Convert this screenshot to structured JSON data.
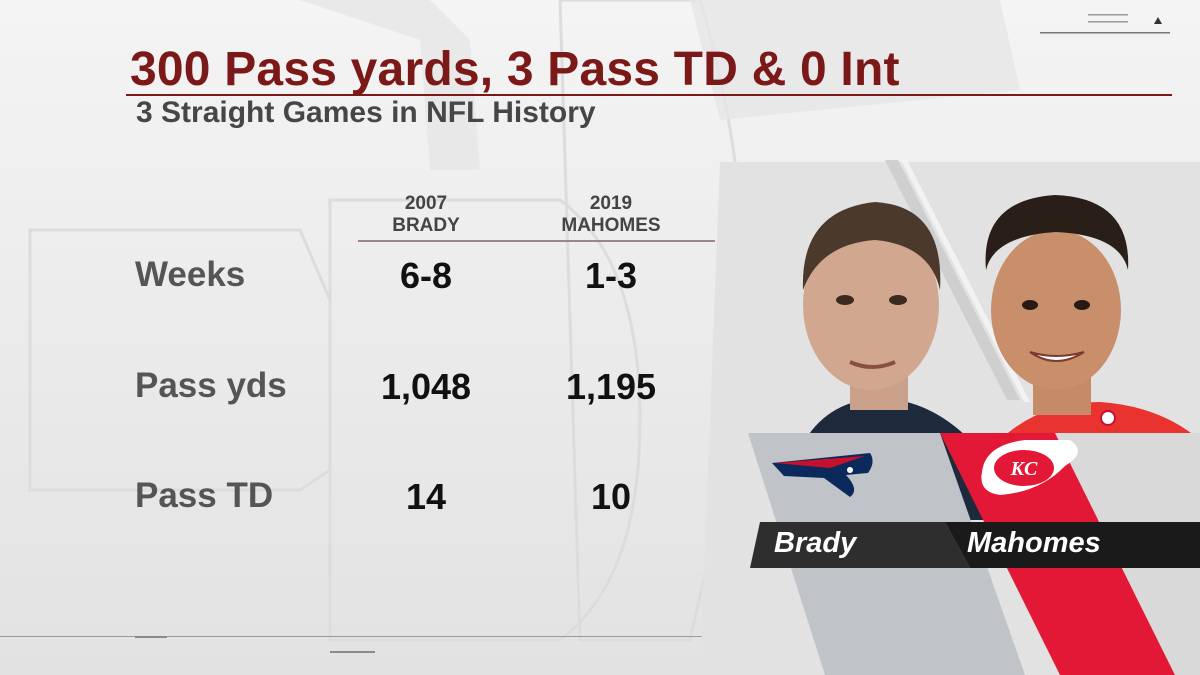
{
  "title": "300 Pass yards, 3 Pass TD & 0 Int",
  "subtitle": "3 Straight Games in NFL History",
  "columns": [
    {
      "year": "2007",
      "name": "BRADY"
    },
    {
      "year": "2019",
      "name": "MAHOMES"
    }
  ],
  "rows": [
    {
      "label": "Weeks",
      "values": [
        "6-8",
        "1-3"
      ]
    },
    {
      "label": "Pass yds",
      "values": [
        "1,048",
        "1,195"
      ]
    },
    {
      "label": "Pass TD",
      "values": [
        "14",
        "10"
      ]
    }
  ],
  "players": [
    {
      "name": "Brady",
      "team_logo": "patriots-logo-icon",
      "color": "#c0c4c8"
    },
    {
      "name": "Mahomes",
      "team_logo": "chiefs-logo-icon",
      "color": "#e31837"
    }
  ],
  "colors": {
    "title": "#7b1818",
    "subtitle": "#464646",
    "label": "#555555",
    "value": "#111111"
  }
}
